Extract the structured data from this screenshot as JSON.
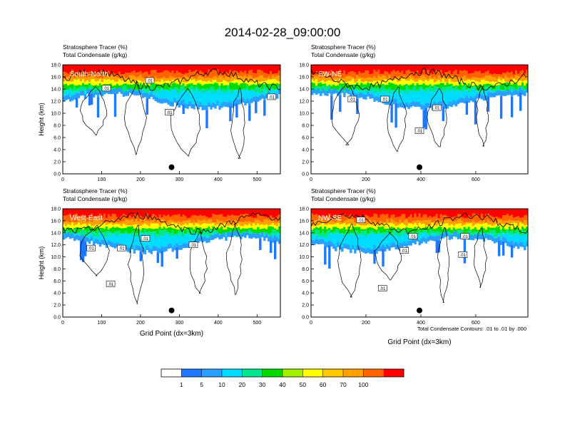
{
  "figure": {
    "title": "2014-02-28_09:00:00",
    "footnote": "Total Condensate Contours: .01 to .01 by .000"
  },
  "chart_data": [
    {
      "type": "heatmap",
      "panel": "South-North",
      "subtitle_line1": "Stratosphere Tracer   (%)",
      "subtitle_line2": "Total Condensate   (g/kg)",
      "ylabel": "Height (km)",
      "xlabel": "",
      "xlim": [
        0,
        560
      ],
      "ylim": [
        0,
        18
      ],
      "xticks": [
        "0",
        "100",
        "200",
        "300",
        "400",
        "500"
      ],
      "yticks": [
        "0.0",
        "2.0",
        "4.0",
        "6.0",
        "8.0",
        "10.0",
        "12.0",
        "14.0",
        "16.0",
        "18.0"
      ],
      "marker_x": 280,
      "marker_y": 1.1,
      "contour_labels": [
        ".01",
        ".01",
        ".01",
        ".01"
      ]
    },
    {
      "type": "heatmap",
      "panel": "SW-NE",
      "subtitle_line1": "Stratosphere Tracer   (%)",
      "subtitle_line2": "Total Condensate   (g/kg)",
      "ylabel": "",
      "xlabel": "",
      "xlim": [
        0,
        790
      ],
      "ylim": [
        0,
        18
      ],
      "xticks": [
        "0",
        "200",
        "400",
        "600"
      ],
      "yticks": [
        "0.0",
        "2.0",
        "4.0",
        "6.0",
        "8.0",
        "10.0",
        "12.0",
        "14.0",
        "16.0",
        "18.0"
      ],
      "marker_x": 395,
      "marker_y": 1.1,
      "contour_labels": [
        ".01",
        ".01",
        ".01",
        ".01"
      ]
    },
    {
      "type": "heatmap",
      "panel": "West-East",
      "subtitle_line1": "Stratosphere Tracer   (%)",
      "subtitle_line2": "Total Condensate   (g/kg)",
      "ylabel": "Height (km)",
      "xlabel": "Grid Point (dx=3km)",
      "xlim": [
        0,
        560
      ],
      "ylim": [
        0,
        18
      ],
      "xticks": [
        "0",
        "100",
        "200",
        "300",
        "400",
        "500"
      ],
      "yticks": [
        "0.0",
        "2.0",
        "4.0",
        "6.0",
        "8.0",
        "10.0",
        "12.0",
        "14.0",
        "16.0",
        "18.0"
      ],
      "marker_x": 280,
      "marker_y": 1.1,
      "contour_labels": [
        ".01",
        ".01",
        ".01",
        ".01",
        ".01"
      ]
    },
    {
      "type": "heatmap",
      "panel": "NW-SE",
      "subtitle_line1": "Stratosphere Tracer   (%)",
      "subtitle_line2": "Total Condensate   (g/kg)",
      "ylabel": "",
      "xlabel": "Grid Point (dx=3km)",
      "xlim": [
        0,
        790
      ],
      "ylim": [
        0,
        18
      ],
      "xticks": [
        "0",
        "200",
        "400",
        "600"
      ],
      "yticks": [
        "0.0",
        "2.0",
        "4.0",
        "6.0",
        "8.0",
        "10.0",
        "12.0",
        "14.0",
        "16.0",
        "18.0"
      ],
      "marker_x": 395,
      "marker_y": 1.1,
      "contour_labels": [
        ".01",
        ".01",
        ".01",
        ".01",
        ".01",
        ".01"
      ]
    }
  ],
  "colorbar": {
    "levels": [
      "1",
      "5",
      "10",
      "20",
      "30",
      "40",
      "50",
      "60",
      "70",
      "100"
    ],
    "colors": [
      "#ffffff",
      "#1e78ff",
      "#28a0ff",
      "#00dcff",
      "#00e68c",
      "#00dc00",
      "#a0f000",
      "#ffff00",
      "#ffc800",
      "#ffa000",
      "#ff6400",
      "#ff0000"
    ]
  }
}
